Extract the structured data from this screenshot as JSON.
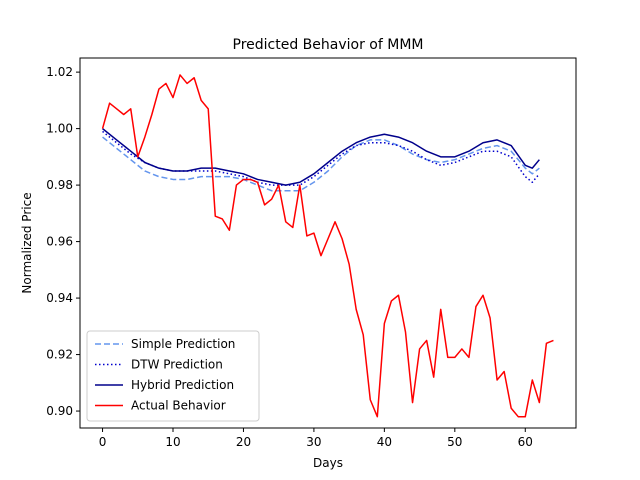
{
  "chart_data": {
    "type": "line",
    "title": "Predicted Behavior of MMM",
    "xlabel": "Days",
    "ylabel": "Normalized Price",
    "xlim": [
      -3.2,
      67.2
    ],
    "ylim": [
      0.894,
      1.025
    ],
    "xticks": [
      0,
      10,
      20,
      30,
      40,
      50,
      60
    ],
    "yticks": [
      0.9,
      0.92,
      0.94,
      0.96,
      0.98,
      1.0,
      1.02
    ],
    "xtick_labels": [
      "0",
      "10",
      "20",
      "30",
      "40",
      "50",
      "60"
    ],
    "ytick_labels": [
      "0.90",
      "0.92",
      "0.94",
      "0.96",
      "0.98",
      "1.00",
      "1.02"
    ],
    "grid": false,
    "legend": "lower-left",
    "series": [
      {
        "name": "Simple Prediction",
        "color": "#6495ed",
        "dash": "dashed",
        "x": [
          0,
          2,
          4,
          6,
          8,
          10,
          12,
          14,
          16,
          18,
          20,
          22,
          24,
          26,
          28,
          30,
          32,
          34,
          36,
          38,
          40,
          42,
          44,
          46,
          48,
          50,
          52,
          54,
          56,
          58,
          60,
          61,
          62
        ],
        "y": [
          0.997,
          0.993,
          0.989,
          0.985,
          0.983,
          0.982,
          0.982,
          0.983,
          0.983,
          0.983,
          0.982,
          0.98,
          0.978,
          0.978,
          0.978,
          0.981,
          0.985,
          0.99,
          0.994,
          0.996,
          0.996,
          0.994,
          0.991,
          0.989,
          0.988,
          0.989,
          0.991,
          0.993,
          0.994,
          0.992,
          0.986,
          0.984,
          0.986
        ]
      },
      {
        "name": "DTW Prediction",
        "color": "#0000cd",
        "dash": "dotted",
        "x": [
          0,
          2,
          4,
          6,
          8,
          10,
          12,
          14,
          16,
          18,
          20,
          22,
          24,
          26,
          28,
          30,
          32,
          34,
          36,
          38,
          40,
          42,
          44,
          46,
          48,
          50,
          52,
          54,
          56,
          58,
          60,
          61,
          62
        ],
        "y": [
          0.999,
          0.995,
          0.991,
          0.988,
          0.986,
          0.985,
          0.985,
          0.985,
          0.985,
          0.984,
          0.983,
          0.981,
          0.98,
          0.98,
          0.98,
          0.983,
          0.987,
          0.991,
          0.994,
          0.995,
          0.995,
          0.994,
          0.992,
          0.989,
          0.987,
          0.988,
          0.99,
          0.992,
          0.992,
          0.99,
          0.983,
          0.981,
          0.984
        ]
      },
      {
        "name": "Hybrid Prediction",
        "color": "#00008b",
        "dash": "solid",
        "x": [
          0,
          2,
          4,
          6,
          8,
          10,
          12,
          14,
          16,
          18,
          20,
          22,
          24,
          26,
          28,
          30,
          32,
          34,
          36,
          38,
          40,
          42,
          44,
          46,
          48,
          50,
          52,
          54,
          56,
          58,
          60,
          61,
          62
        ],
        "y": [
          1.0,
          0.996,
          0.992,
          0.988,
          0.986,
          0.985,
          0.985,
          0.986,
          0.986,
          0.985,
          0.984,
          0.982,
          0.981,
          0.98,
          0.981,
          0.984,
          0.988,
          0.992,
          0.995,
          0.997,
          0.998,
          0.997,
          0.995,
          0.992,
          0.99,
          0.99,
          0.992,
          0.995,
          0.996,
          0.994,
          0.987,
          0.986,
          0.989
        ]
      },
      {
        "name": "Actual Behavior",
        "color": "#ff0000",
        "dash": "solid",
        "x": [
          0,
          1,
          2,
          3,
          4,
          5,
          6,
          7,
          8,
          9,
          10,
          11,
          12,
          13,
          14,
          15,
          16,
          17,
          18,
          19,
          20,
          21,
          22,
          23,
          24,
          25,
          26,
          27,
          28,
          29,
          30,
          31,
          32,
          33,
          34,
          35,
          36,
          37,
          38,
          39,
          40,
          41,
          42,
          43,
          44,
          45,
          46,
          47,
          48,
          49,
          50,
          51,
          52,
          53,
          54,
          55,
          56,
          57,
          58,
          59,
          60,
          61,
          62,
          63,
          64
        ],
        "y": [
          1.0,
          1.009,
          1.007,
          1.005,
          1.007,
          0.99,
          0.997,
          1.005,
          1.014,
          1.016,
          1.011,
          1.019,
          1.016,
          1.018,
          1.01,
          1.007,
          0.969,
          0.968,
          0.964,
          0.98,
          0.982,
          0.982,
          0.981,
          0.973,
          0.975,
          0.98,
          0.967,
          0.965,
          0.98,
          0.962,
          0.963,
          0.955,
          0.961,
          0.967,
          0.961,
          0.952,
          0.936,
          0.927,
          0.904,
          0.898,
          0.931,
          0.939,
          0.941,
          0.928,
          0.903,
          0.922,
          0.925,
          0.912,
          0.936,
          0.919,
          0.919,
          0.922,
          0.919,
          0.937,
          0.941,
          0.933,
          0.911,
          0.914,
          0.901,
          0.898,
          0.898,
          0.911,
          0.903,
          0.924,
          0.925
        ]
      }
    ]
  }
}
